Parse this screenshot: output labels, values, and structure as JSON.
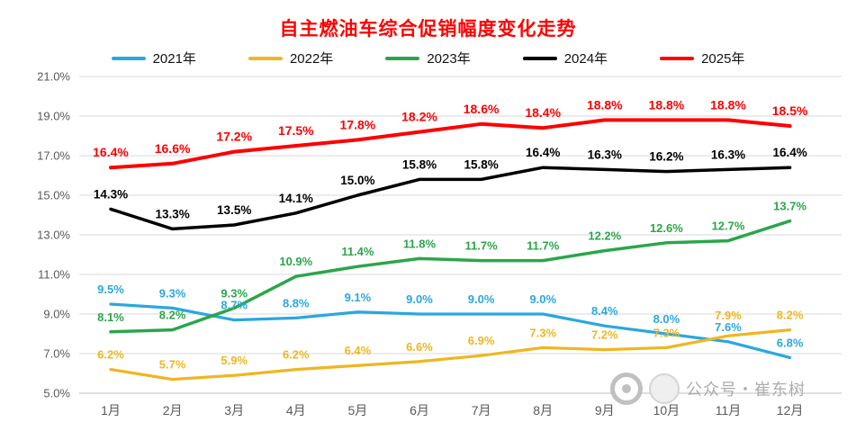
{
  "chart_data": {
    "type": "line",
    "title": "自主燃油车综合促销幅度变化走势",
    "title_color": "#FF0000",
    "grid": true,
    "legend_position": "top",
    "value_suffix": "%",
    "categories": [
      "1月",
      "2月",
      "3月",
      "4月",
      "5月",
      "6月",
      "7月",
      "8月",
      "9月",
      "10月",
      "11月",
      "12月"
    ],
    "y_axis": {
      "min": 5,
      "max": 21,
      "step": 2,
      "tick_labels": [
        "5.0%",
        "7.0%",
        "9.0%",
        "11.0%",
        "13.0%",
        "15.0%",
        "17.0%",
        "19.0%",
        "21.0%"
      ]
    },
    "series": [
      {
        "name": "2021年",
        "color": "#2AA7DF",
        "values": [
          9.5,
          9.3,
          8.7,
          8.8,
          9.1,
          9.0,
          9.0,
          9.0,
          8.4,
          8.0,
          7.6,
          6.8
        ]
      },
      {
        "name": "2022年",
        "color": "#EFB621",
        "values": [
          6.2,
          5.7,
          5.9,
          6.2,
          6.4,
          6.6,
          6.9,
          7.3,
          7.2,
          7.3,
          7.9,
          8.2
        ]
      },
      {
        "name": "2023年",
        "color": "#2BA64A",
        "values": [
          8.1,
          8.2,
          9.3,
          10.9,
          11.4,
          11.8,
          11.7,
          11.7,
          12.2,
          12.6,
          12.7,
          13.7
        ]
      },
      {
        "name": "2024年",
        "color": "#000000",
        "values": [
          14.3,
          13.3,
          13.5,
          14.1,
          15.0,
          15.8,
          15.8,
          16.4,
          16.3,
          16.2,
          16.3,
          16.4
        ]
      },
      {
        "name": "2025年",
        "color": "#FE0000",
        "values": [
          16.4,
          16.6,
          17.2,
          17.5,
          17.8,
          18.2,
          18.6,
          18.4,
          18.8,
          18.8,
          18.8,
          18.5
        ]
      }
    ]
  },
  "watermark": {
    "text": "公众号・崔东树"
  }
}
